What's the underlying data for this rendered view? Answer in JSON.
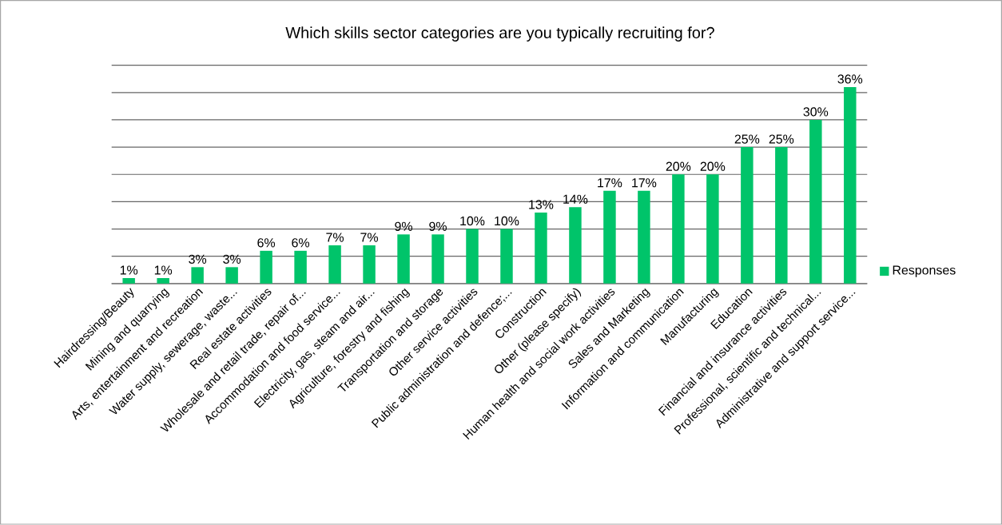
{
  "chart_data": {
    "type": "bar",
    "title": "Which skills sector categories are you typically recruiting for?",
    "categories": [
      "Hairdressing/Beauty",
      "Mining and quarrying",
      "Arts, entertainment and recreation",
      "Water supply, sewerage, waste...",
      "Real estate activities",
      "Wholesale and retail trade, repair of...",
      "Accommodation and food service...",
      "Electricity, gas, steam and air...",
      "Agriculture, forestry and fishing",
      "Transportation and storage",
      "Other service activities",
      "Public administration and defence;...",
      "Construction",
      "Other (please specify)",
      "Human health and social work activities",
      "Sales and Marketing",
      "Information and communication",
      "Manufacturing",
      "Education",
      "Financial and insurance activities",
      "Professional, scientific and technical...",
      "Administrative and support service..."
    ],
    "series": [
      {
        "name": "Responses",
        "color": "#00c46a",
        "values": [
          1,
          1,
          3,
          3,
          6,
          6,
          7,
          7,
          9,
          9,
          10,
          10,
          13,
          14,
          17,
          17,
          20,
          20,
          25,
          25,
          30,
          36
        ],
        "value_labels": [
          "1%",
          "1%",
          "3%",
          "3%",
          "6%",
          "6%",
          "7%",
          "7%",
          "9%",
          "9%",
          "10%",
          "10%",
          "13%",
          "14%",
          "17%",
          "17%",
          "20%",
          "20%",
          "25%",
          "25%",
          "30%",
          "36%"
        ]
      }
    ],
    "ylim": [
      0,
      40
    ],
    "yticks": [
      {
        "value": 0,
        "label": null
      },
      {
        "value": 5,
        "label": null
      },
      {
        "value": 10,
        "label": null
      },
      {
        "value": 15,
        "label": null
      },
      {
        "value": 20,
        "label": null
      },
      {
        "value": 25,
        "label": null
      },
      {
        "value": 30,
        "label": null
      },
      {
        "value": 35,
        "label": null
      },
      {
        "value": 40,
        "label": null
      }
    ],
    "tick_labels": "x",
    "grid": "y",
    "legend": "right"
  }
}
